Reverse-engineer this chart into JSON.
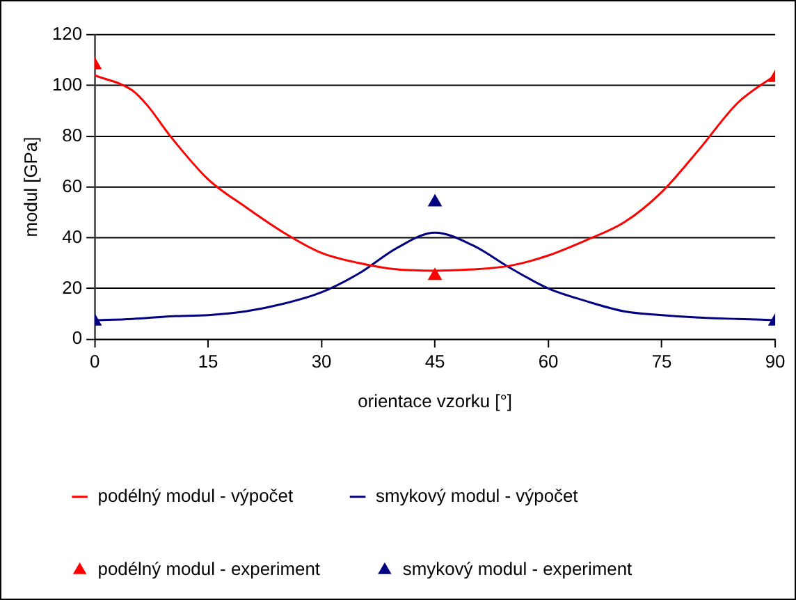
{
  "chart_data": {
    "type": "line",
    "xlabel": "orientace vzorku [°]",
    "ylabel": "modul [GPa]",
    "xlim": [
      0,
      90
    ],
    "xticks": [
      0,
      15,
      30,
      45,
      60,
      75,
      90
    ],
    "ylim": [
      0,
      120
    ],
    "yticks": [
      0,
      20,
      40,
      60,
      80,
      100,
      120
    ],
    "grid": "y",
    "legend": "bottom",
    "series": [
      {
        "name": "podélný modul - výpočet",
        "color": "#ff0000",
        "marker": "none",
        "x": [
          0,
          5,
          7,
          10,
          15,
          20,
          25,
          30,
          35,
          40,
          45,
          50,
          55,
          60,
          65,
          70,
          75,
          80,
          85,
          90
        ],
        "values": [
          104,
          98,
          92,
          80,
          63,
          52,
          42,
          34,
          30,
          27.5,
          27,
          27.5,
          29,
          33,
          39,
          46,
          58,
          75,
          93,
          104
        ]
      },
      {
        "name": "smykový modul - výpočet",
        "color": "#000080",
        "marker": "none",
        "x": [
          0,
          5,
          10,
          15,
          20,
          25,
          30,
          35,
          40,
          45,
          50,
          55,
          60,
          65,
          70,
          75,
          80,
          85,
          90
        ],
        "values": [
          7.5,
          8,
          9,
          9.5,
          11,
          14,
          18.5,
          26,
          36,
          42,
          37,
          28,
          20,
          15,
          11,
          9.5,
          8.5,
          8,
          7.5
        ]
      },
      {
        "name": "podélný modul - experiment",
        "type": "scatter",
        "color": "#ff0000",
        "marker": "triangle",
        "x": [
          0,
          45,
          90
        ],
        "values": [
          108,
          25,
          103
        ]
      },
      {
        "name": "smykový modul - experiment",
        "type": "scatter",
        "color": "#000080",
        "marker": "triangle",
        "x": [
          0,
          45,
          90
        ],
        "values": [
          7,
          54,
          7
        ]
      }
    ]
  }
}
